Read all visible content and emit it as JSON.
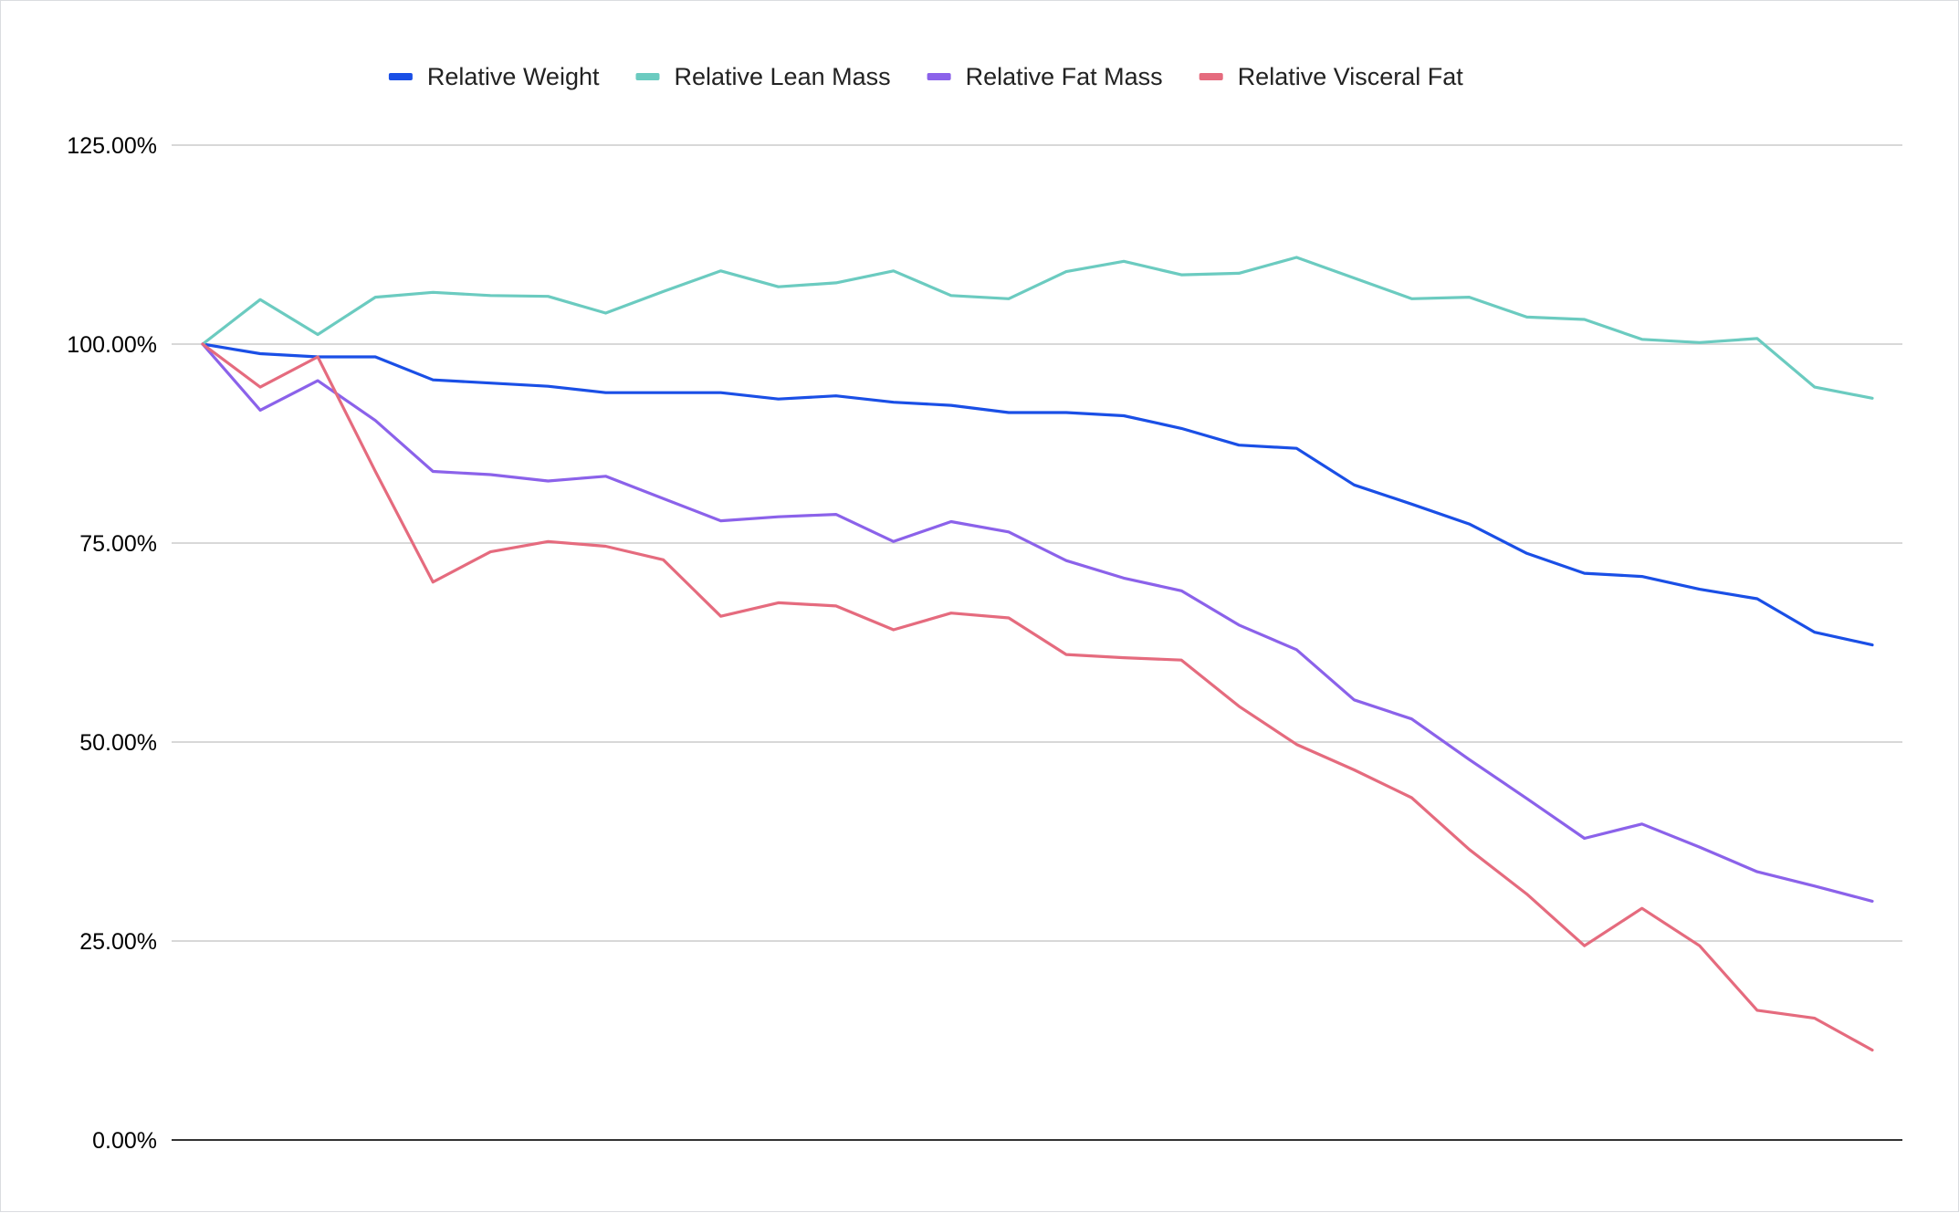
{
  "chart_data": {
    "type": "line",
    "title": "",
    "xlabel": "",
    "ylabel": "",
    "ylim": [
      0,
      125
    ],
    "y_ticks": [
      0,
      25,
      50,
      75,
      100,
      125
    ],
    "y_tick_labels": [
      "0.00%",
      "25.00%",
      "50.00%",
      "75.00%",
      "100.00%",
      "125.00%"
    ],
    "y_unit": "percent",
    "x": [
      1,
      2,
      3,
      4,
      5,
      6,
      7,
      8,
      9,
      10,
      11,
      12,
      13,
      14,
      15,
      16,
      17,
      18,
      19,
      20,
      21,
      22,
      23,
      24,
      25,
      26,
      27,
      28,
      29,
      30
    ],
    "x_tick_labels_shown": false,
    "grid": true,
    "legend_position": "top",
    "series": [
      {
        "name": "Relative Weight",
        "color": "#1a4fe6",
        "values": [
          100,
          98.8,
          98.4,
          98.4,
          95.5,
          95.1,
          94.7,
          93.9,
          93.9,
          93.9,
          93.1,
          93.5,
          92.7,
          92.3,
          91.4,
          91.4,
          91.0,
          89.4,
          87.3,
          86.9,
          82.3,
          79.9,
          77.4,
          73.7,
          71.2,
          70.8,
          69.2,
          68.0,
          63.8,
          62.2
        ]
      },
      {
        "name": "Relative Lean Mass",
        "color": "#6bcbc0",
        "values": [
          100,
          105.6,
          101.2,
          105.9,
          106.5,
          106.1,
          106.0,
          103.9,
          106.6,
          109.2,
          107.2,
          107.7,
          109.2,
          106.1,
          105.7,
          109.1,
          110.4,
          108.7,
          108.9,
          110.9,
          108.3,
          105.7,
          105.9,
          103.4,
          103.1,
          100.6,
          100.2,
          100.7,
          94.6,
          93.2
        ]
      },
      {
        "name": "Relative Fat Mass",
        "color": "#8b62ea",
        "values": [
          100,
          91.7,
          95.4,
          90.4,
          84.0,
          83.6,
          82.8,
          83.4,
          80.6,
          77.8,
          78.3,
          78.6,
          75.2,
          77.7,
          76.4,
          72.8,
          70.6,
          69.0,
          64.7,
          61.6,
          55.3,
          52.9,
          47.8,
          42.9,
          37.9,
          39.7,
          36.8,
          33.7,
          31.9,
          30.0
        ]
      },
      {
        "name": "Relative Visceral Fat",
        "color": "#e56b7e",
        "values": [
          100,
          94.6,
          98.4,
          84.0,
          70.1,
          73.9,
          75.2,
          74.6,
          72.9,
          65.8,
          67.5,
          67.1,
          64.1,
          66.2,
          65.6,
          61.0,
          60.6,
          60.3,
          54.5,
          49.7,
          46.5,
          43.0,
          36.5,
          30.9,
          24.4,
          29.1,
          24.4,
          16.3,
          15.3,
          11.3
        ]
      }
    ]
  }
}
